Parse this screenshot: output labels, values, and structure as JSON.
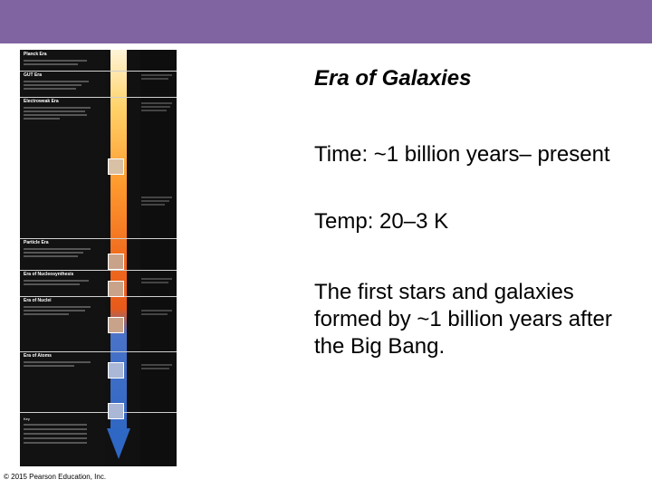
{
  "slide": {
    "title": "Era of Galaxies",
    "time": "Time: ~1 billion years– present",
    "temp": "Temp: 20–3 K",
    "description": "The first stars and galaxies formed by ~1 billion years after the Big Bang."
  },
  "figure": {
    "copyright": "© 2015 Pearson Education, Inc.",
    "eras": [
      {
        "title": "Planck Era"
      },
      {
        "title": "GUT Era"
      },
      {
        "title": "Electroweak Era"
      },
      {
        "title": "Particle Era"
      },
      {
        "title": "Era of Nucleosynthesis"
      },
      {
        "title": "Era of Nuclei"
      },
      {
        "title": "Era of Atoms"
      }
    ],
    "key_label": "Key"
  },
  "colors": {
    "header_bar": "#8064a2",
    "timeline_hot": "#f06a1e",
    "timeline_cool": "#2f67c4"
  }
}
